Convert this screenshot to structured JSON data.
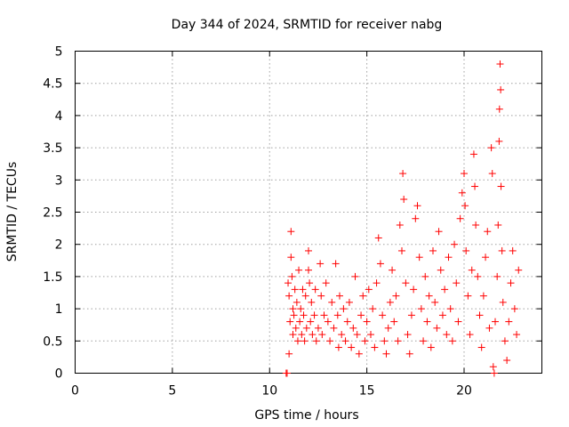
{
  "chart_data": {
    "type": "scatter",
    "title": "Day 344 of 2024, SRMTID for receiver nabg",
    "xlabel": "GPS time / hours",
    "ylabel": "SRMTID / TECUs",
    "xlim": [
      0,
      24
    ],
    "ylim": [
      0,
      5
    ],
    "x_ticks": [
      0,
      5,
      10,
      15,
      20
    ],
    "y_ticks": [
      0,
      0.5,
      1,
      1.5,
      2,
      2.5,
      3,
      3.5,
      4,
      4.5,
      5
    ],
    "x_tick_labels": [
      "0",
      "5",
      "10",
      "15",
      "20"
    ],
    "y_tick_labels": [
      "0",
      "0.5",
      "1",
      "1.5",
      "2",
      "2.5",
      "3",
      "3.5",
      "4",
      "4.5",
      "5"
    ],
    "grid": true,
    "marker": "+",
    "color": "#ff0000",
    "series": [
      {
        "name": "SRMTID",
        "points": [
          [
            10.85,
            0.0
          ],
          [
            10.9,
            0.0
          ],
          [
            10.95,
            1.4
          ],
          [
            11.0,
            1.2
          ],
          [
            11.0,
            0.3
          ],
          [
            11.05,
            0.8
          ],
          [
            11.1,
            2.2
          ],
          [
            11.1,
            1.8
          ],
          [
            11.15,
            1.5
          ],
          [
            11.2,
            1.0
          ],
          [
            11.2,
            0.6
          ],
          [
            11.25,
            0.9
          ],
          [
            11.3,
            1.3
          ],
          [
            11.35,
            0.7
          ],
          [
            11.4,
            1.1
          ],
          [
            11.45,
            0.5
          ],
          [
            11.5,
            1.6
          ],
          [
            11.55,
            0.8
          ],
          [
            11.6,
            1.0
          ],
          [
            11.65,
            0.6
          ],
          [
            11.7,
            1.3
          ],
          [
            11.75,
            0.9
          ],
          [
            11.8,
            0.5
          ],
          [
            11.85,
            1.2
          ],
          [
            11.9,
            0.7
          ],
          [
            12.0,
            1.9
          ],
          [
            12.0,
            1.6
          ],
          [
            12.05,
            1.4
          ],
          [
            12.1,
            0.8
          ],
          [
            12.15,
            1.1
          ],
          [
            12.2,
            0.6
          ],
          [
            12.3,
            0.9
          ],
          [
            12.35,
            1.3
          ],
          [
            12.4,
            0.5
          ],
          [
            12.5,
            0.7
          ],
          [
            12.6,
            1.7
          ],
          [
            12.65,
            1.2
          ],
          [
            12.7,
            0.6
          ],
          [
            12.8,
            0.9
          ],
          [
            12.9,
            1.4
          ],
          [
            13.0,
            0.8
          ],
          [
            13.1,
            0.5
          ],
          [
            13.2,
            1.1
          ],
          [
            13.3,
            0.7
          ],
          [
            13.4,
            1.7
          ],
          [
            13.5,
            0.9
          ],
          [
            13.55,
            0.4
          ],
          [
            13.6,
            1.2
          ],
          [
            13.7,
            0.6
          ],
          [
            13.8,
            1.0
          ],
          [
            13.9,
            0.5
          ],
          [
            14.0,
            0.8
          ],
          [
            14.1,
            1.1
          ],
          [
            14.2,
            0.4
          ],
          [
            14.3,
            0.7
          ],
          [
            14.4,
            1.5
          ],
          [
            14.5,
            0.6
          ],
          [
            14.6,
            0.3
          ],
          [
            14.7,
            0.9
          ],
          [
            14.8,
            1.2
          ],
          [
            14.9,
            0.5
          ],
          [
            15.0,
            0.8
          ],
          [
            15.1,
            1.3
          ],
          [
            15.2,
            0.6
          ],
          [
            15.3,
            1.0
          ],
          [
            15.4,
            0.4
          ],
          [
            15.5,
            1.4
          ],
          [
            15.6,
            2.1
          ],
          [
            15.7,
            1.7
          ],
          [
            15.8,
            0.9
          ],
          [
            15.9,
            0.5
          ],
          [
            16.0,
            0.3
          ],
          [
            16.1,
            0.7
          ],
          [
            16.2,
            1.1
          ],
          [
            16.3,
            1.6
          ],
          [
            16.4,
            0.8
          ],
          [
            16.5,
            1.2
          ],
          [
            16.6,
            0.5
          ],
          [
            16.7,
            2.3
          ],
          [
            16.8,
            1.9
          ],
          [
            16.85,
            3.1
          ],
          [
            16.9,
            2.7
          ],
          [
            17.0,
            1.4
          ],
          [
            17.1,
            0.6
          ],
          [
            17.2,
            0.3
          ],
          [
            17.3,
            0.9
          ],
          [
            17.4,
            1.3
          ],
          [
            17.5,
            2.4
          ],
          [
            17.6,
            2.6
          ],
          [
            17.7,
            1.8
          ],
          [
            17.8,
            1.0
          ],
          [
            17.9,
            0.5
          ],
          [
            18.0,
            1.5
          ],
          [
            18.1,
            0.8
          ],
          [
            18.2,
            1.2
          ],
          [
            18.3,
            0.4
          ],
          [
            18.4,
            1.9
          ],
          [
            18.5,
            1.1
          ],
          [
            18.6,
            0.7
          ],
          [
            18.7,
            2.2
          ],
          [
            18.8,
            1.6
          ],
          [
            18.9,
            0.9
          ],
          [
            19.0,
            1.3
          ],
          [
            19.1,
            0.6
          ],
          [
            19.2,
            1.8
          ],
          [
            19.3,
            1.0
          ],
          [
            19.4,
            0.5
          ],
          [
            19.5,
            2.0
          ],
          [
            19.6,
            1.4
          ],
          [
            19.7,
            0.8
          ],
          [
            19.8,
            2.4
          ],
          [
            19.9,
            2.8
          ],
          [
            20.0,
            3.1
          ],
          [
            20.05,
            2.6
          ],
          [
            20.1,
            1.9
          ],
          [
            20.2,
            1.2
          ],
          [
            20.3,
            0.6
          ],
          [
            20.4,
            1.6
          ],
          [
            20.5,
            3.4
          ],
          [
            20.55,
            2.9
          ],
          [
            20.6,
            2.3
          ],
          [
            20.7,
            1.5
          ],
          [
            20.8,
            0.9
          ],
          [
            20.9,
            0.4
          ],
          [
            21.0,
            1.2
          ],
          [
            21.1,
            1.8
          ],
          [
            21.2,
            2.2
          ],
          [
            21.3,
            0.7
          ],
          [
            21.4,
            3.5
          ],
          [
            21.45,
            3.1
          ],
          [
            21.5,
            0.1
          ],
          [
            21.55,
            0.0
          ],
          [
            21.6,
            0.8
          ],
          [
            21.7,
            1.5
          ],
          [
            21.75,
            2.3
          ],
          [
            21.8,
            3.6
          ],
          [
            21.82,
            4.1
          ],
          [
            21.85,
            4.8
          ],
          [
            21.88,
            4.4
          ],
          [
            21.9,
            2.9
          ],
          [
            21.95,
            1.9
          ],
          [
            22.0,
            1.1
          ],
          [
            22.1,
            0.5
          ],
          [
            22.2,
            0.2
          ],
          [
            22.3,
            0.8
          ],
          [
            22.4,
            1.4
          ],
          [
            22.5,
            1.9
          ],
          [
            22.6,
            1.0
          ],
          [
            22.7,
            0.6
          ],
          [
            22.8,
            1.6
          ]
        ]
      }
    ]
  }
}
